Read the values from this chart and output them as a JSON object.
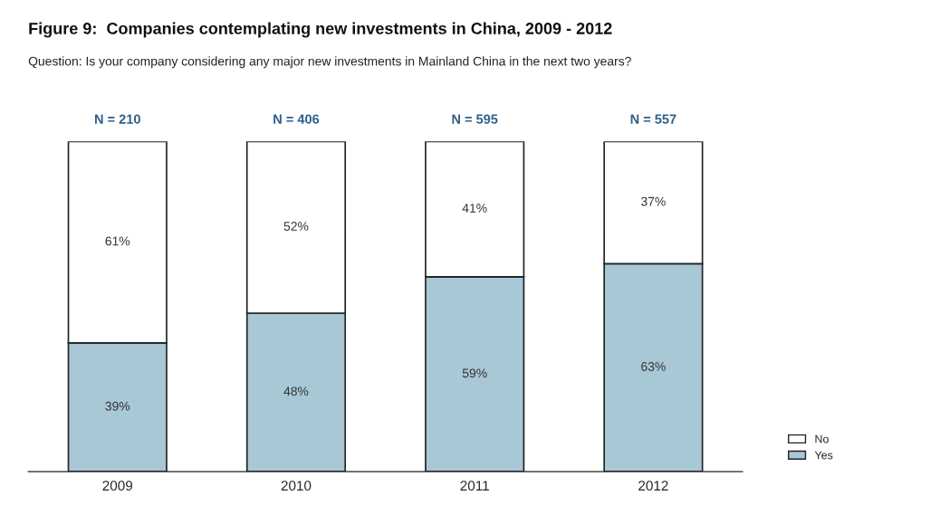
{
  "chart_data": {
    "type": "bar",
    "stacked": true,
    "title": "Figure 9:  Companies contemplating new investments in China, 2009 - 2012",
    "subtitle": "Question: Is your company considering any major new investments in Mainland China in the next two years?",
    "categories": [
      "2009",
      "2010",
      "2011",
      "2012"
    ],
    "series": [
      {
        "name": "Yes",
        "color": "#a8c8d6",
        "values": [
          39,
          48,
          59,
          63
        ],
        "value_labels": [
          "39%",
          "48%",
          "59%",
          "63%"
        ]
      },
      {
        "name": "No",
        "color": "#ffffff",
        "values": [
          61,
          52,
          41,
          37
        ],
        "value_labels": [
          "61%",
          "52%",
          "41%",
          "37%"
        ]
      }
    ],
    "annotations": [
      {
        "text": "N = 210",
        "x": "2009",
        "y": 100
      },
      {
        "text": "N = 406",
        "x": "2010",
        "y": 100
      },
      {
        "text": "N = 595",
        "x": "2011",
        "y": 100
      },
      {
        "text": "N = 557",
        "x": "2012",
        "y": 100
      }
    ],
    "legend": "bottom right"
  }
}
